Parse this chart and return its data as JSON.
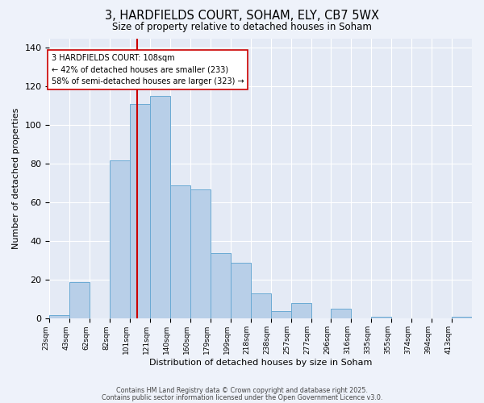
{
  "title": "3, HARDFIELDS COURT, SOHAM, ELY, CB7 5WX",
  "subtitle": "Size of property relative to detached houses in Soham",
  "xlabel": "Distribution of detached houses by size in Soham",
  "ylabel": "Number of detached properties",
  "categories": [
    "23sqm",
    "43sqm",
    "62sqm",
    "82sqm",
    "101sqm",
    "121sqm",
    "140sqm",
    "160sqm",
    "179sqm",
    "199sqm",
    "218sqm",
    "238sqm",
    "257sqm",
    "277sqm",
    "296sqm",
    "316sqm",
    "335sqm",
    "355sqm",
    "374sqm",
    "394sqm",
    "413sqm"
  ],
  "values": [
    2,
    19,
    0,
    82,
    111,
    115,
    69,
    67,
    34,
    29,
    13,
    4,
    8,
    0,
    5,
    0,
    1,
    0,
    0,
    0,
    1
  ],
  "bar_color": "#b8cfe8",
  "bar_edge_color": "#6aaad4",
  "background_color": "#eef2fa",
  "plot_bg_color": "#e4eaf5",
  "grid_color": "#ffffff",
  "vline_color": "#cc0000",
  "annotation_title": "3 HARDFIELDS COURT: 108sqm",
  "annotation_line1": "← 42% of detached houses are smaller (233)",
  "annotation_line2": "58% of semi-detached houses are larger (323) →",
  "annotation_box_color": "#ffffff",
  "annotation_box_edge_color": "#cc0000",
  "ylim": [
    0,
    145
  ],
  "yticks": [
    0,
    20,
    40,
    60,
    80,
    100,
    120,
    140
  ],
  "footer1": "Contains HM Land Registry data © Crown copyright and database right 2025.",
  "footer2": "Contains public sector information licensed under the Open Government Licence v3.0."
}
